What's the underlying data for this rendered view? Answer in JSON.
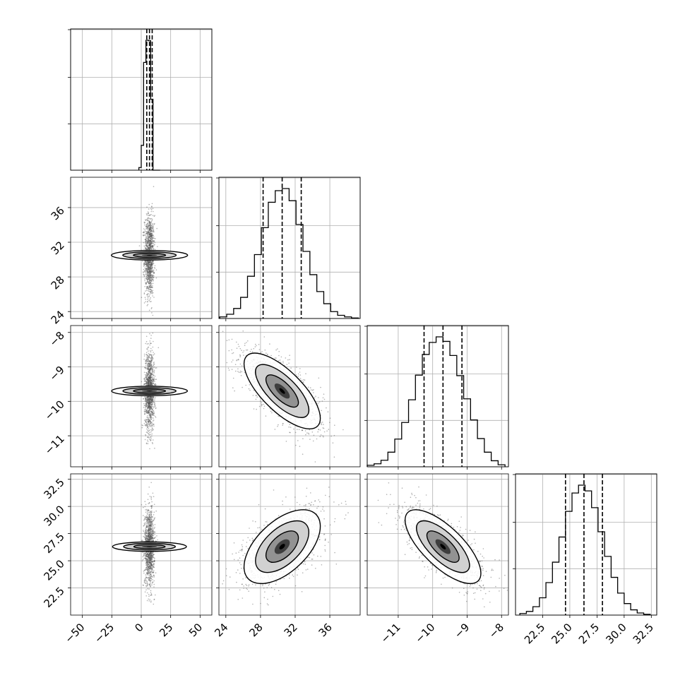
{
  "chart_data": {
    "type": "corner",
    "grid": true,
    "colors": {
      "hist": "#000000",
      "contour": "#000000",
      "points": "#555555",
      "quantile": "#000000",
      "grid": "#b0b0b0"
    },
    "params": [
      {
        "range": [
          -60,
          60
        ],
        "ticks": [
          -50,
          -25,
          0,
          25,
          50
        ],
        "tick_labels": [
          "−50",
          "−25",
          "0",
          "25",
          "50"
        ],
        "mean": 7,
        "sd": 2.0,
        "quantiles": [
          4.7,
          7.0,
          9.3
        ],
        "hist_bins": [
          -2,
          0,
          2,
          4,
          6,
          8,
          10,
          12,
          14,
          16
        ],
        "hist_counts": [
          60,
          560,
          2430,
          2930,
          2920,
          1600,
          0,
          0,
          0
        ]
      },
      {
        "range": [
          23.2,
          39.5
        ],
        "ticks": [
          24,
          28,
          32,
          36
        ],
        "tick_labels": [
          "24",
          "28",
          "32",
          "36"
        ],
        "mean": 30.5,
        "sd": 2.2,
        "quantiles": [
          28.3,
          30.5,
          32.7
        ],
        "hist_bins": [
          23.3,
          24.1,
          24.9,
          25.7,
          26.5,
          27.3,
          28.1,
          28.9,
          29.7,
          30.5,
          31.3,
          32.1,
          32.9,
          33.7,
          34.5,
          35.3,
          36.1,
          36.9,
          37.7,
          38.5,
          39.3
        ],
        "hist_counts": [
          30,
          80,
          190,
          400,
          800,
          1210,
          1720,
          2200,
          2420,
          2460,
          2230,
          1780,
          1270,
          830,
          510,
          280,
          130,
          60,
          30,
          10
        ]
      },
      {
        "range": [
          -11.9,
          -7.8
        ],
        "ticks": [
          -11,
          -10,
          -9,
          -8
        ],
        "tick_labels": [
          "−11",
          "−10",
          "−9",
          "−8"
        ],
        "mean": -9.7,
        "sd": 0.55,
        "quantiles": [
          -10.25,
          -9.7,
          -9.15
        ],
        "hist_bins": [
          -11.9,
          -11.7,
          -11.5,
          -11.3,
          -11.1,
          -10.9,
          -10.7,
          -10.5,
          -10.3,
          -10.1,
          -9.9,
          -9.7,
          -9.5,
          -9.3,
          -9.1,
          -8.9,
          -8.7,
          -8.5,
          -8.3,
          -8.1,
          -7.9
        ],
        "hist_counts": [
          30,
          60,
          130,
          290,
          550,
          880,
          1330,
          1820,
          2230,
          2470,
          2580,
          2490,
          2210,
          1810,
          1350,
          930,
          560,
          290,
          120,
          40
        ]
      },
      {
        "range": [
          20.0,
          33.0
        ],
        "ticks": [
          22.5,
          25.0,
          27.5,
          30.0,
          32.5
        ],
        "tick_labels": [
          "22.5",
          "25.0",
          "27.5",
          "30.0",
          "32.5"
        ],
        "mean": 26.3,
        "sd": 1.7,
        "quantiles": [
          24.6,
          26.3,
          28.0
        ],
        "hist_bins": [
          20.4,
          21.0,
          21.6,
          22.2,
          22.8,
          23.4,
          24.0,
          24.6,
          25.2,
          25.8,
          26.4,
          27.0,
          27.6,
          28.2,
          28.8,
          29.4,
          30.0,
          30.6,
          31.2,
          31.8,
          32.4
        ],
        "hist_counts": [
          30,
          70,
          160,
          330,
          620,
          1010,
          1490,
          1980,
          2330,
          2480,
          2370,
          2050,
          1590,
          1120,
          720,
          420,
          220,
          100,
          40,
          15
        ]
      }
    ],
    "correlations": [
      {
        "row": 1,
        "col": 0,
        "rho": 0.0
      },
      {
        "row": 2,
        "col": 0,
        "rho": 0.0
      },
      {
        "row": 2,
        "col": 1,
        "rho": -0.72
      },
      {
        "row": 3,
        "col": 0,
        "rho": 0.0
      },
      {
        "row": 3,
        "col": 1,
        "rho": 0.55
      },
      {
        "row": 3,
        "col": 2,
        "rho": -0.72
      }
    ]
  }
}
